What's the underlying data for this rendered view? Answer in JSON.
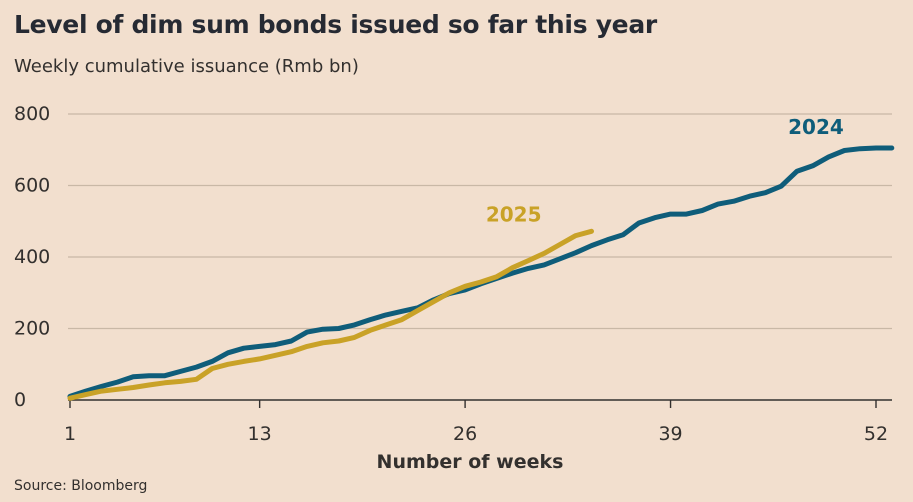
{
  "chart_data": {
    "type": "line",
    "title": "Level of dim sum bonds issued so far this year",
    "subtitle": "Weekly cumulative issuance (Rmb bn)",
    "xlabel": "Number of weeks",
    "ylabel": "",
    "source": "Source: Bloomberg",
    "xlim": [
      1,
      53
    ],
    "ylim": [
      0,
      800
    ],
    "xticks": [
      1,
      13,
      26,
      39,
      52
    ],
    "yticks": [
      0,
      200,
      400,
      600,
      800
    ],
    "grid": "horizontal",
    "series": [
      {
        "name": "2024",
        "color": "#0f5d7a",
        "x": [
          1,
          2,
          3,
          4,
          5,
          6,
          7,
          8,
          9,
          10,
          11,
          12,
          13,
          14,
          15,
          16,
          17,
          18,
          19,
          20,
          21,
          22,
          23,
          24,
          25,
          26,
          27,
          28,
          29,
          30,
          31,
          32,
          33,
          34,
          35,
          36,
          37,
          38,
          39,
          40,
          41,
          42,
          43,
          44,
          45,
          46,
          47,
          48,
          49,
          50,
          51,
          52,
          53
        ],
        "values": [
          10,
          25,
          38,
          50,
          65,
          68,
          68,
          80,
          92,
          108,
          132,
          145,
          150,
          155,
          165,
          190,
          198,
          200,
          210,
          225,
          238,
          248,
          258,
          280,
          298,
          308,
          325,
          340,
          355,
          368,
          378,
          395,
          412,
          432,
          448,
          462,
          495,
          510,
          520,
          520,
          530,
          548,
          556,
          570,
          580,
          598,
          640,
          655,
          680,
          698,
          703,
          705,
          705
        ]
      },
      {
        "name": "2025",
        "color": "#c9a227",
        "x": [
          1,
          2,
          3,
          4,
          5,
          6,
          7,
          8,
          9,
          10,
          11,
          12,
          13,
          14,
          15,
          16,
          17,
          18,
          19,
          20,
          21,
          22,
          23,
          24,
          25,
          26,
          27,
          28,
          29,
          30,
          31,
          32,
          33,
          34
        ],
        "values": [
          5,
          15,
          25,
          30,
          35,
          42,
          48,
          52,
          58,
          88,
          100,
          108,
          115,
          125,
          135,
          150,
          160,
          165,
          175,
          195,
          210,
          225,
          250,
          275,
          300,
          318,
          330,
          345,
          370,
          390,
          410,
          435,
          460,
          472
        ]
      }
    ]
  }
}
